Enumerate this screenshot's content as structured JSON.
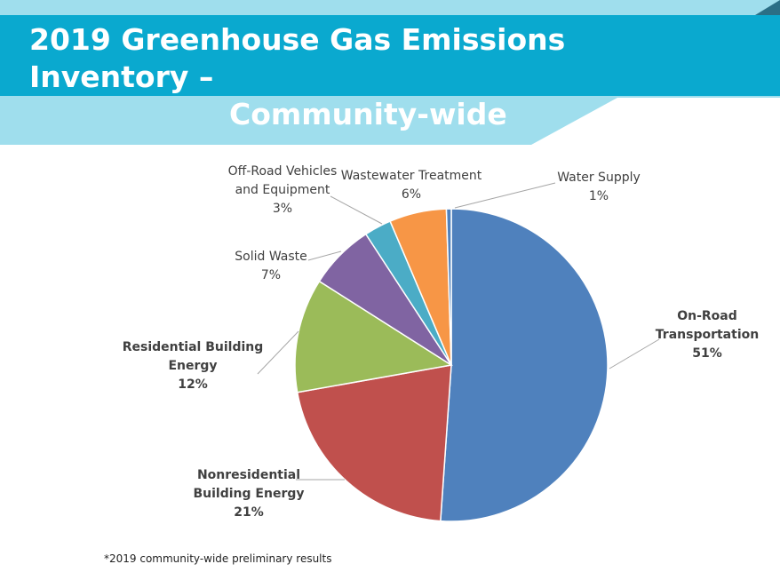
{
  "slide": {
    "title_line1": "2019 Greenhouse Gas Emissions Inventory –",
    "title_line2": "Community-wide",
    "footnote": "*2019 community-wide preliminary results"
  },
  "colors": {
    "banner_dark": "#0aa9cf",
    "banner_light": "#9fdeed",
    "corner_accent": "#2b6f86"
  },
  "chart_data": {
    "type": "pie",
    "title": "",
    "start_angle_deg": 0,
    "direction": "clockwise",
    "slices": [
      {
        "key": "on-road",
        "lines": [
          "On-Road",
          "Transportation"
        ],
        "percent_label": "51%",
        "value": 51.1,
        "color": "#4f81bd",
        "bold": true
      },
      {
        "key": "nonresidential",
        "lines": [
          "Nonresidential",
          "Building Energy"
        ],
        "percent_label": "21%",
        "value": 21.1,
        "color": "#c0504d",
        "bold": true
      },
      {
        "key": "residential",
        "lines": [
          "Residential Building",
          "Energy"
        ],
        "percent_label": "12%",
        "value": 11.8,
        "color": "#9bbb59",
        "bold": true
      },
      {
        "key": "solid-waste",
        "lines": [
          "Solid Waste"
        ],
        "percent_label": "7%",
        "value": 6.8,
        "color": "#8064a2",
        "bold": false
      },
      {
        "key": "off-road",
        "lines": [
          "Off-Road Vehicles",
          "and Equipment"
        ],
        "percent_label": "3%",
        "value": 2.8,
        "color": "#4bacc6",
        "bold": false
      },
      {
        "key": "wastewater",
        "lines": [
          "Wastewater Treatment"
        ],
        "percent_label": "6%",
        "value": 5.9,
        "color": "#f79646",
        "bold": false
      },
      {
        "key": "water-supply",
        "lines": [
          "Water Supply"
        ],
        "percent_label": "1%",
        "value": 0.5,
        "color": "#4f81bd",
        "bold": false
      }
    ]
  }
}
